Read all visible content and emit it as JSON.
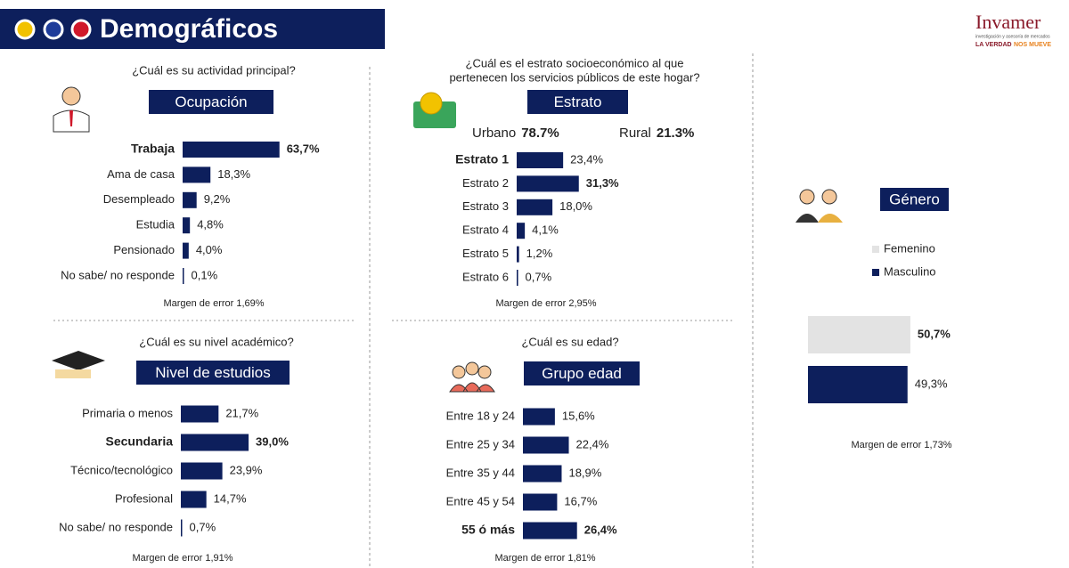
{
  "header": {
    "title": "Demográficos"
  },
  "logo": {
    "brand": "Invamer",
    "sub": "investigación y asesoría de mercados",
    "tag1": "LA VERDAD",
    "tag2": "NOS MUEVE"
  },
  "chart_data": [
    {
      "type": "bar",
      "question": "¿Cuál es su actividad principal?",
      "title": "Ocupación",
      "categories": [
        "Trabaja",
        "Ama de casa",
        "Desempleado",
        "Estudia",
        "Pensionado",
        "No sabe/ no responde"
      ],
      "values": [
        63.7,
        18.3,
        9.2,
        4.8,
        4.0,
        0.1
      ],
      "value_labels": [
        "63,7%",
        "18,3%",
        "9,2%",
        "4,8%",
        "4,0%",
        "0,1%"
      ],
      "xlim": [
        0,
        75
      ],
      "color": "#0d1f5c",
      "bold_label": 0,
      "bold_value": 0,
      "note": "Margen de error 1,69%"
    },
    {
      "type": "bar",
      "question": [
        "¿Cuál es el estrato socioeconómico al que",
        "pertenecen los servicios públicos de este hogar?"
      ],
      "title": "Estrato",
      "split": {
        "categories": [
          "Urbano",
          "Rural"
        ],
        "values": [
          78.7,
          21.3
        ],
        "value_labels": [
          "78.7%",
          "21.3%"
        ]
      },
      "categories": [
        "Estrato 1",
        "Estrato 2",
        "Estrato 3",
        "Estrato 4",
        "Estrato 5",
        "Estrato 6"
      ],
      "values": [
        23.4,
        31.3,
        18.0,
        4.1,
        1.2,
        0.7
      ],
      "value_labels": [
        "23,4%",
        "31,3%",
        "18,0%",
        "4,1%",
        "1,2%",
        "0,7%"
      ],
      "xlim": [
        0,
        35
      ],
      "color": "#0d1f5c",
      "bold_label": 0,
      "bold_value": 1,
      "note": "Margen de error 2,95%"
    },
    {
      "type": "bar",
      "question": "¿Cuál es su nivel académico?",
      "title": "Nivel de estudios",
      "categories": [
        "Primaria o menos",
        "Secundaria",
        "Técnico/tecnológico",
        "Profesional",
        "No sabe/ no responde"
      ],
      "values": [
        21.7,
        39.0,
        23.9,
        14.7,
        0.7
      ],
      "value_labels": [
        "21,7%",
        "39,0%",
        "23,9%",
        "14,7%",
        "0,7%"
      ],
      "xlim": [
        0,
        40
      ],
      "color": "#0d1f5c",
      "bold_label": 1,
      "bold_value": 1,
      "note": "Margen de error 1,91%"
    },
    {
      "type": "bar",
      "question": "¿Cuál es su edad?",
      "title": "Grupo edad",
      "categories": [
        "Entre 18 y 24",
        "Entre 25 y 34",
        "Entre 35 y 44",
        "Entre 45 y 54",
        "55 ó más"
      ],
      "values": [
        15.6,
        22.4,
        18.9,
        16.7,
        26.4
      ],
      "value_labels": [
        "15,6%",
        "22,4%",
        "18,9%",
        "16,7%",
        "26,4%"
      ],
      "xlim": [
        0,
        30
      ],
      "color": "#0d1f5c",
      "bold_label": 4,
      "bold_value": 4,
      "note": "Margen de error 1,81%"
    },
    {
      "type": "bar",
      "title": "Género",
      "categories": [
        "Femenino",
        "Masculino"
      ],
      "values": [
        50.7,
        49.3
      ],
      "value_labels": [
        "50,7%",
        "49,3%"
      ],
      "colors": [
        "#e3e3e3",
        "#0d1f5c"
      ],
      "legend": true,
      "xlim": [
        0,
        60
      ],
      "bold_value": 0,
      "note": "Margen de error 1,73%"
    }
  ]
}
